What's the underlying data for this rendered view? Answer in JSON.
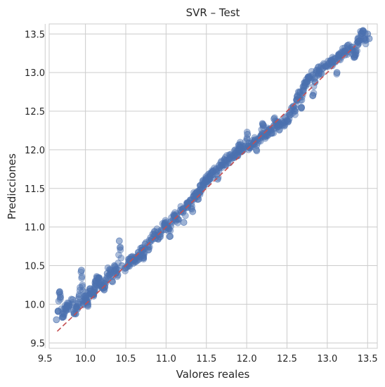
{
  "chart_data": {
    "type": "scatter",
    "title": "SVR – Test",
    "xlabel": "Valores reales",
    "ylabel": "Predicciones",
    "xlim": [
      9.55,
      13.62
    ],
    "ylim": [
      9.43,
      13.63
    ],
    "xticks": [
      9.5,
      10.0,
      10.5,
      11.0,
      11.5,
      12.0,
      12.5,
      13.0,
      13.5
    ],
    "yticks": [
      9.5,
      10.0,
      10.5,
      11.0,
      11.5,
      12.0,
      12.5,
      13.0,
      13.5
    ],
    "xtick_labels": [
      "9.5",
      "10.0",
      "10.5",
      "11.0",
      "11.5",
      "12.0",
      "12.5",
      "13.0",
      "13.5"
    ],
    "ytick_labels": [
      "9.5",
      "10.0",
      "10.5",
      "11.0",
      "11.5",
      "12.0",
      "12.5",
      "13.0",
      "13.5"
    ],
    "grid": true,
    "reference_line": {
      "x": [
        9.65,
        13.35
      ],
      "y": [
        9.65,
        13.35
      ],
      "color": "#c44e52",
      "style": "dashed"
    },
    "point_color": "#4c72b0",
    "points": [
      [
        9.64,
        9.8
      ],
      [
        9.66,
        9.91
      ],
      [
        9.68,
        10.16
      ],
      [
        9.72,
        9.84
      ],
      [
        9.75,
        9.95
      ],
      [
        9.8,
        9.98
      ],
      [
        9.84,
        10.06
      ],
      [
        9.86,
        9.88
      ],
      [
        9.9,
        9.94
      ],
      [
        9.95,
        10.44
      ],
      [
        9.97,
        10.04
      ],
      [
        10.0,
        10.11
      ],
      [
        10.03,
        10.0
      ],
      [
        10.06,
        10.2
      ],
      [
        10.1,
        10.13
      ],
      [
        10.13,
        10.3
      ],
      [
        10.16,
        10.33
      ],
      [
        10.2,
        10.25
      ],
      [
        10.24,
        10.22
      ],
      [
        10.27,
        10.4
      ],
      [
        10.3,
        10.45
      ],
      [
        10.33,
        10.3
      ],
      [
        10.36,
        10.5
      ],
      [
        10.4,
        10.38
      ],
      [
        10.42,
        10.82
      ],
      [
        10.45,
        10.5
      ],
      [
        10.5,
        10.47
      ],
      [
        10.55,
        10.56
      ],
      [
        10.6,
        10.57
      ],
      [
        10.66,
        10.63
      ],
      [
        10.7,
        10.7
      ],
      [
        10.74,
        10.78
      ],
      [
        10.78,
        10.74
      ],
      [
        10.82,
        10.84
      ],
      [
        10.86,
        10.9
      ],
      [
        10.9,
        10.94
      ],
      [
        10.94,
        10.96
      ],
      [
        10.98,
        11.04
      ],
      [
        11.02,
        11.0
      ],
      [
        11.06,
        11.07
      ],
      [
        11.1,
        11.15
      ],
      [
        11.14,
        11.1
      ],
      [
        11.18,
        11.22
      ],
      [
        11.22,
        11.24
      ],
      [
        11.26,
        11.3
      ],
      [
        11.3,
        11.35
      ],
      [
        11.34,
        11.4
      ],
      [
        11.38,
        11.45
      ],
      [
        11.42,
        11.48
      ],
      [
        11.46,
        11.55
      ],
      [
        11.5,
        11.6
      ],
      [
        11.54,
        11.66
      ],
      [
        11.58,
        11.72
      ],
      [
        11.62,
        11.75
      ],
      [
        11.66,
        11.8
      ],
      [
        11.7,
        11.8
      ],
      [
        11.74,
        11.86
      ],
      [
        11.78,
        11.88
      ],
      [
        11.82,
        11.92
      ],
      [
        11.86,
        11.95
      ],
      [
        11.9,
        11.97
      ],
      [
        11.94,
        12.02
      ],
      [
        11.98,
        12.05
      ],
      [
        12.02,
        12.05
      ],
      [
        12.06,
        12.09
      ],
      [
        12.1,
        12.12
      ],
      [
        12.14,
        12.14
      ],
      [
        12.18,
        12.18
      ],
      [
        12.22,
        12.2
      ],
      [
        12.26,
        12.23
      ],
      [
        12.3,
        12.25
      ],
      [
        12.34,
        12.28
      ],
      [
        12.38,
        12.3
      ],
      [
        12.42,
        12.32
      ],
      [
        12.46,
        12.35
      ],
      [
        12.5,
        12.38
      ],
      [
        12.54,
        12.45
      ],
      [
        12.58,
        12.56
      ],
      [
        12.62,
        12.65
      ],
      [
        12.66,
        12.74
      ],
      [
        12.7,
        12.82
      ],
      [
        12.74,
        12.88
      ],
      [
        12.78,
        12.93
      ],
      [
        12.82,
        12.97
      ],
      [
        12.86,
        13.0
      ],
      [
        12.9,
        13.02
      ],
      [
        12.94,
        13.05
      ],
      [
        12.98,
        13.08
      ],
      [
        13.02,
        13.12
      ],
      [
        13.06,
        13.14
      ],
      [
        13.1,
        13.18
      ],
      [
        13.14,
        13.2
      ],
      [
        13.18,
        13.25
      ],
      [
        13.22,
        13.28
      ],
      [
        13.26,
        13.3
      ],
      [
        13.3,
        13.33
      ],
      [
        13.34,
        13.2
      ],
      [
        13.38,
        13.4
      ],
      [
        13.44,
        13.54
      ],
      [
        13.48,
        13.42
      ],
      [
        13.5,
        13.5
      ],
      [
        13.52,
        13.44
      ],
      [
        10.72,
        10.6
      ],
      [
        11.22,
        11.06
      ],
      [
        11.64,
        11.62
      ],
      [
        11.9,
        12.06
      ],
      [
        12.01,
        12.2
      ],
      [
        12.34,
        12.4
      ],
      [
        12.68,
        12.55
      ],
      [
        12.82,
        12.7
      ],
      [
        10.38,
        10.4
      ],
      [
        10.9,
        10.85
      ],
      [
        11.4,
        11.36
      ],
      [
        12.2,
        12.33
      ],
      [
        11.33,
        11.2
      ],
      [
        12.12,
        12.0
      ],
      [
        9.92,
        10.1
      ],
      [
        11.05,
        10.88
      ],
      [
        12.6,
        12.5
      ],
      [
        13.12,
        13.0
      ]
    ]
  }
}
